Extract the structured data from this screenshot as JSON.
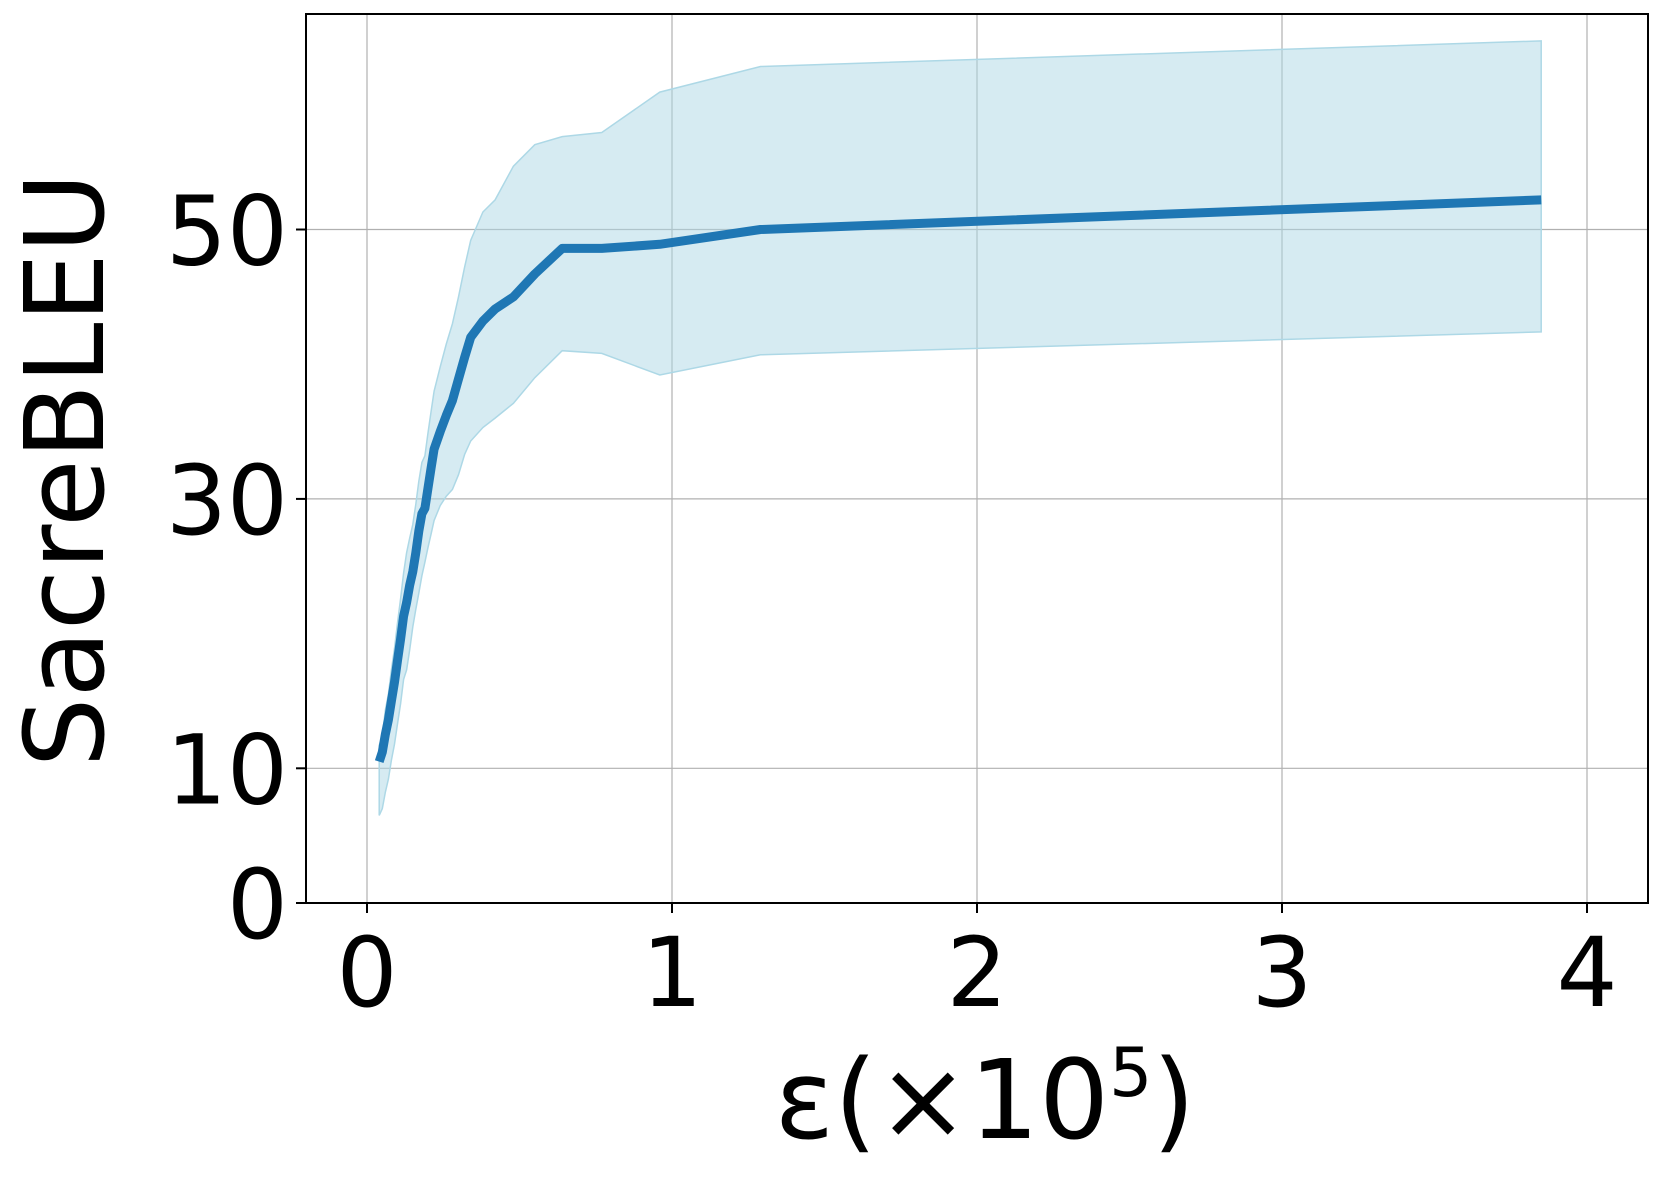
{
  "chart_data": {
    "type": "line",
    "xlabel": "ε(×10",
    "xlabel_exponent": "5",
    "xlabel_close": ")",
    "ylabel": "SacreBLEU",
    "xlim": [
      -0.2,
      4.2
    ],
    "ylim": [
      0,
      66
    ],
    "grid": true,
    "x_ticks": [
      0,
      1,
      2,
      3,
      4
    ],
    "x_tick_labels": [
      "0",
      "1",
      "2",
      "3",
      "4"
    ],
    "y_ticks": [
      0,
      10,
      30,
      50
    ],
    "y_tick_labels": [
      "0",
      "10",
      "30",
      "50"
    ],
    "colors": {
      "line": "#1f77b4",
      "band": "#add8e6",
      "grid": "#b0b0b0",
      "axes": "#000000"
    },
    "series": [
      {
        "x": [
          0.04,
          0.05,
          0.06,
          0.07,
          0.08,
          0.09,
          0.1,
          0.11,
          0.12,
          0.13,
          0.14,
          0.15,
          0.16,
          0.17,
          0.18,
          0.19,
          0.2,
          0.21,
          0.22,
          0.24,
          0.26,
          0.28,
          0.3,
          0.32,
          0.34,
          0.38,
          0.42,
          0.48,
          0.55,
          0.64,
          0.77,
          0.96,
          1.29,
          3.85
        ],
        "y": [
          10.5,
          11.2,
          12.5,
          13.6,
          15.0,
          16.4,
          18.0,
          19.6,
          21.3,
          22.3,
          23.6,
          24.6,
          26.0,
          27.6,
          28.9,
          29.3,
          30.8,
          32.3,
          33.7,
          35.0,
          36.2,
          37.3,
          38.9,
          40.5,
          42.0,
          43.2,
          44.1,
          45.0,
          46.7,
          48.6,
          48.6,
          48.9,
          50.0,
          52.2
        ],
        "lower": [
          6.5,
          7.0,
          8.2,
          9.2,
          10.6,
          11.8,
          13.3,
          14.8,
          16.6,
          17.3,
          18.8,
          20.5,
          21.8,
          23.0,
          24.3,
          25.3,
          26.4,
          27.4,
          28.4,
          29.5,
          30.2,
          30.7,
          31.8,
          33.3,
          34.3,
          35.3,
          36.0,
          37.1,
          39.0,
          41.0,
          40.8,
          39.2,
          40.7,
          42.4
        ],
        "upper": [
          11.7,
          12.4,
          14.3,
          15.5,
          17.3,
          18.9,
          20.8,
          22.6,
          24.5,
          26.0,
          27.1,
          28.1,
          29.6,
          31.3,
          32.7,
          33.2,
          34.9,
          36.5,
          38.0,
          39.8,
          41.5,
          43.0,
          45.0,
          47.2,
          49.2,
          51.3,
          52.2,
          54.7,
          56.3,
          56.9,
          57.2,
          60.2,
          62.1,
          64.0
        ]
      }
    ]
  }
}
